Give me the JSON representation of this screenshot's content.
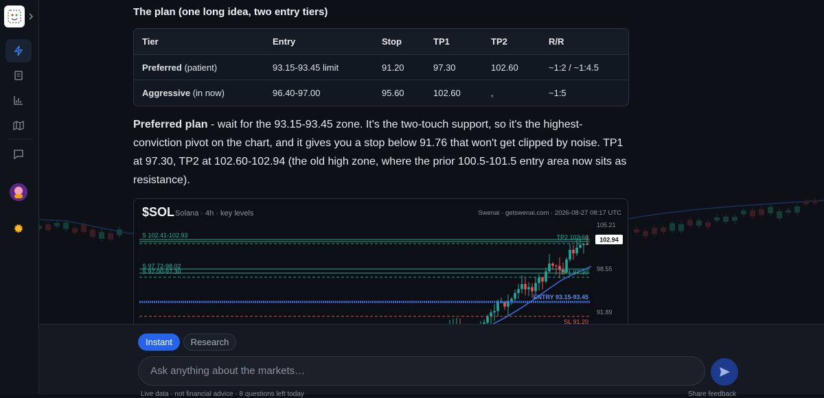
{
  "message": {
    "heading": "The plan (one long idea, two entry tiers)",
    "table": {
      "header": [
        "Tier",
        "Entry",
        "Stop",
        "TP1",
        "TP2",
        "R/R"
      ],
      "rows": [
        [
          {
            "strong": "Preferred",
            "note": "(patient)"
          },
          "93.15-93.45 limit",
          "91.20",
          "97.30",
          "102.60",
          "~1:2 / ~1:4.5"
        ],
        [
          {
            "strong": "Aggressive",
            "note": "(in now)"
          },
          "96.40-97.00",
          "95.60",
          "102.60",
          ",",
          "~1:5"
        ]
      ]
    },
    "paragraph": {
      "lead": "Preferred plan",
      "text": "- wait for the 93.15-93.45 zone. It's the two-touch support, so it's the highest-conviction pivot on the chart, and it gives you a stop below 91.76 that won't get clipped by noise. TP1 at 97.30, TP2 at 102.60-102.94 (the old high zone, where the prior 100.5-101.5 entry area now sits as resistance)."
    }
  },
  "chart_card": {
    "ticker": "$SOL",
    "subtitle": "Solana · 4h · key levels",
    "source": "Swenai · getswenai.com · 2026-08-27 08:17 UTC",
    "levels": {
      "s1": "S 102.41-102.93",
      "tp2": "TP2 102.60",
      "s2": "S 97.72-98.02",
      "s3": "S 97.00-97.30",
      "tp1": "TP1 97.30",
      "entry": "ENTRY 93.15-93.45",
      "sl": "SL 91.20"
    },
    "price_axis": [
      "105.21",
      "98.55",
      "91.89"
    ],
    "last_price": "102.94"
  },
  "composer": {
    "modes": [
      "Instant",
      "Research"
    ],
    "placeholder": "Ask anything about the markets…",
    "footer": "Live data · not financial advice · 8 questions left today",
    "feedback": "Share feedback"
  }
}
